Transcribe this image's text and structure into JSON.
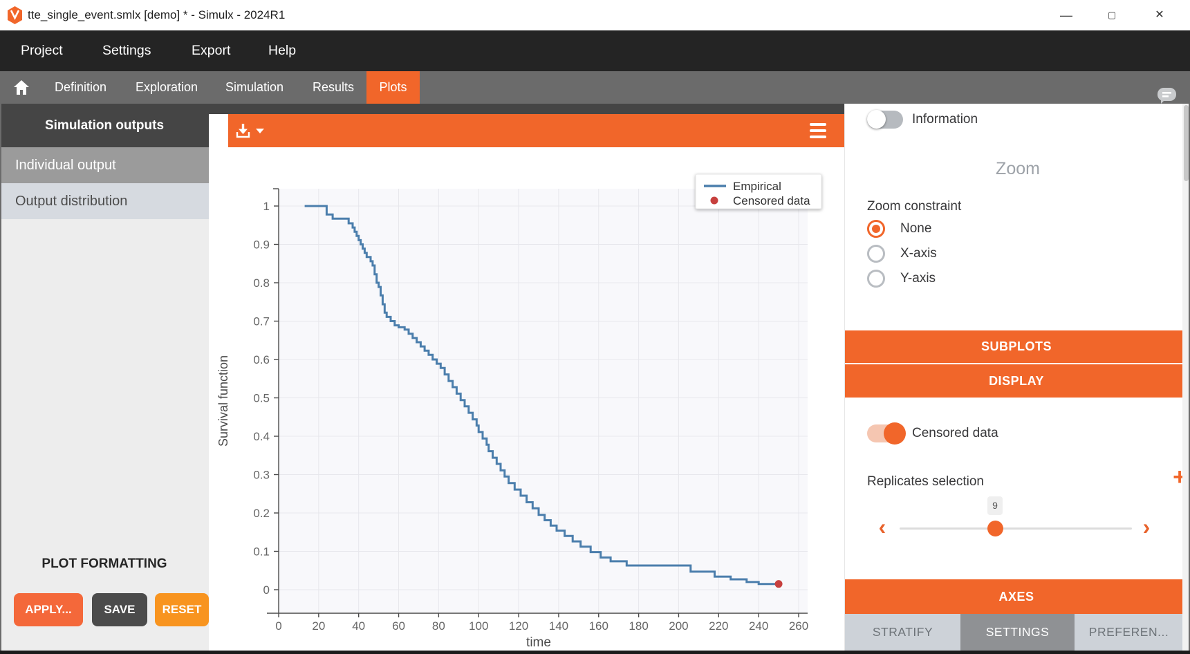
{
  "window": {
    "title": "tte_single_event.smlx [demo] * - Simulx - 2024R1",
    "controls": {
      "minimize": "—",
      "maximize": "▢",
      "close": "✕"
    }
  },
  "menubar": {
    "items": [
      "Project",
      "Settings",
      "Export",
      "Help"
    ]
  },
  "tabbar": {
    "items": [
      "Definition",
      "Exploration",
      "Simulation",
      "Results",
      "Plots"
    ],
    "active": "Plots"
  },
  "sidebar": {
    "header": "Simulation outputs",
    "items": [
      {
        "label": "Individual output",
        "selected": true
      },
      {
        "label": "Output distribution",
        "selected": false
      }
    ],
    "formatting_title": "PLOT FORMATTING",
    "buttons": [
      {
        "label": "APPLY..."
      },
      {
        "label": "SAVE"
      },
      {
        "label": "RESET"
      }
    ]
  },
  "plot_toolbar": {
    "download_icon": "download-arrow",
    "menu_icon": "hamburger"
  },
  "chart_data": {
    "type": "line",
    "step": true,
    "title": "",
    "xlabel": "time",
    "ylabel": "Survival function",
    "xlim": [
      0,
      260
    ],
    "xtick_step": 20,
    "ylim": [
      0,
      1
    ],
    "ytick_step": 0.1,
    "grid": true,
    "legend": {
      "position": "top-right",
      "entries": [
        {
          "label": "Empirical",
          "type": "line",
          "color": "#4B7EAC"
        },
        {
          "label": "Censored data",
          "type": "dot",
          "color": "#C7403E"
        }
      ]
    },
    "series": [
      {
        "name": "Empirical",
        "color": "#4B7EAC",
        "points": [
          [
            13,
            1.0
          ],
          [
            24,
            0.978
          ],
          [
            27,
            0.967
          ],
          [
            35,
            0.955
          ],
          [
            37,
            0.944
          ],
          [
            38,
            0.933
          ],
          [
            39,
            0.922
          ],
          [
            40,
            0.911
          ],
          [
            41,
            0.9
          ],
          [
            42,
            0.889
          ],
          [
            43,
            0.878
          ],
          [
            44,
            0.867
          ],
          [
            46,
            0.856
          ],
          [
            47,
            0.845
          ],
          [
            48,
            0.822
          ],
          [
            49,
            0.8
          ],
          [
            50,
            0.789
          ],
          [
            51,
            0.767
          ],
          [
            52,
            0.744
          ],
          [
            53,
            0.722
          ],
          [
            54,
            0.711
          ],
          [
            56,
            0.7
          ],
          [
            58,
            0.689
          ],
          [
            60,
            0.684
          ],
          [
            63,
            0.678
          ],
          [
            65,
            0.667
          ],
          [
            67,
            0.656
          ],
          [
            69,
            0.645
          ],
          [
            71,
            0.634
          ],
          [
            73,
            0.623
          ],
          [
            75,
            0.612
          ],
          [
            77,
            0.6
          ],
          [
            79,
            0.589
          ],
          [
            81,
            0.578
          ],
          [
            83,
            0.561
          ],
          [
            85,
            0.544
          ],
          [
            87,
            0.528
          ],
          [
            89,
            0.511
          ],
          [
            91,
            0.494
          ],
          [
            93,
            0.478
          ],
          [
            95,
            0.461
          ],
          [
            97,
            0.444
          ],
          [
            99,
            0.428
          ],
          [
            100,
            0.411
          ],
          [
            102,
            0.394
          ],
          [
            104,
            0.378
          ],
          [
            105,
            0.361
          ],
          [
            107,
            0.344
          ],
          [
            109,
            0.328
          ],
          [
            111,
            0.311
          ],
          [
            113,
            0.295
          ],
          [
            115,
            0.278
          ],
          [
            118,
            0.261
          ],
          [
            121,
            0.245
          ],
          [
            124,
            0.228
          ],
          [
            127,
            0.212
          ],
          [
            130,
            0.195
          ],
          [
            133,
            0.181
          ],
          [
            136,
            0.167
          ],
          [
            139,
            0.154
          ],
          [
            143,
            0.14
          ],
          [
            147,
            0.126
          ],
          [
            151,
            0.112
          ],
          [
            156,
            0.098
          ],
          [
            161,
            0.084
          ],
          [
            166,
            0.074
          ],
          [
            174,
            0.063
          ],
          [
            206,
            0.047
          ],
          [
            218,
            0.034
          ],
          [
            226,
            0.027
          ],
          [
            234,
            0.02
          ],
          [
            240,
            0.015
          ],
          [
            250,
            0.015
          ]
        ]
      }
    ],
    "censored": {
      "name": "Censored data",
      "color": "#C7403E",
      "points": [
        [
          250,
          0.015
        ]
      ]
    }
  },
  "panel": {
    "information_label": "Information",
    "zoom_title": "Zoom",
    "zoom_constraint_label": "Zoom constraint",
    "radios": [
      {
        "label": "None",
        "selected": true
      },
      {
        "label": "X-axis",
        "selected": false
      },
      {
        "label": "Y-axis",
        "selected": false
      }
    ],
    "subplots_label": "SUBPLOTS",
    "display_label": "DISPLAY",
    "censored_toggle_label": "Censored data",
    "censored_toggle_on": true,
    "replicates_label": "Replicates selection",
    "replicates_add": "+",
    "slider": {
      "value": "9",
      "left_arrow": "‹",
      "right_arrow": "›"
    },
    "axes_label": "AXES",
    "tabs": [
      {
        "label": "STRATIFY",
        "active": false
      },
      {
        "label": "SETTINGS",
        "active": true
      },
      {
        "label": "PREFEREN...",
        "active": false
      }
    ]
  }
}
